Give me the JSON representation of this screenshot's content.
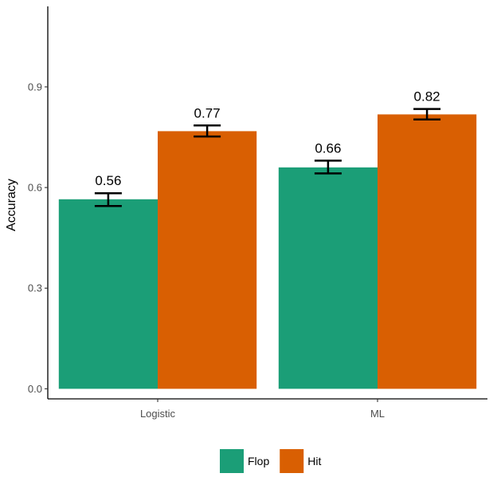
{
  "chart_data": {
    "type": "bar",
    "categories": [
      "Logistic",
      "ML"
    ],
    "series": [
      {
        "name": "Flop",
        "color": "#1b9e77",
        "values": [
          0.565,
          0.66
        ],
        "labels": [
          "0.56",
          "0.66"
        ],
        "error": [
          [
            0.545,
            0.583
          ],
          [
            0.642,
            0.68
          ]
        ]
      },
      {
        "name": "Hit",
        "color": "#d95f02",
        "values": [
          0.768,
          0.818
        ],
        "labels": [
          "0.77",
          "0.82"
        ],
        "error": [
          [
            0.752,
            0.785
          ],
          [
            0.803,
            0.834
          ]
        ]
      }
    ],
    "ylabel": "Accuracy",
    "xlabel": "",
    "ylim": [
      -0.03,
      1.14
    ],
    "yticks": [
      0.0,
      0.3,
      0.6,
      0.9
    ],
    "ytick_labels": [
      "0.0",
      "0.3",
      "0.6",
      "0.9"
    ],
    "grid": false,
    "legend_position": "bottom"
  }
}
